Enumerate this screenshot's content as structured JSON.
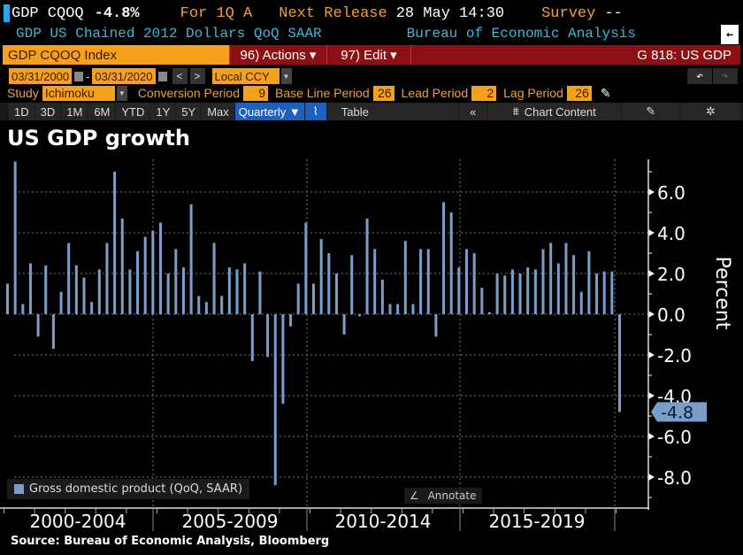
{
  "header": {
    "ticker": "GDP CQOQ",
    "last_value": "-4.8%",
    "period": "For 1Q A",
    "next_release_label": "Next Release",
    "next_release": "28 May 14:30",
    "survey_label": "Survey",
    "survey": "--",
    "description": "GDP US Chained 2012 Dollars QoQ SAAR",
    "source": "Bureau of Economic Analysis"
  },
  "command_bar": {
    "security": "GDP CQOQ Index",
    "actions": "96) Actions ▾",
    "edit": "97) Edit ▾",
    "function": "G 818: US GDP"
  },
  "date_bar": {
    "start": "03/31/2000",
    "end": "03/31/2020",
    "separator": "-",
    "prev": "<",
    "next": ">",
    "currency": "Local CCY"
  },
  "study_bar": {
    "study_label": "Study",
    "study": "Ichimoku",
    "params": [
      {
        "label": "Conversion Period",
        "value": "9"
      },
      {
        "label": "Base Line Period",
        "value": "26"
      },
      {
        "label": "Lead Period",
        "value": "2"
      },
      {
        "label": "Lag Period",
        "value": "26"
      }
    ]
  },
  "toolbar": {
    "ranges": [
      "1D",
      "3D",
      "1M",
      "6M",
      "YTD",
      "1Y",
      "5Y",
      "Max"
    ],
    "frequency": "Quarterly ▼",
    "table": "Table",
    "collapse": "«",
    "chart_content": "Chart Content"
  },
  "legend": "Gross domestic product (QoQ, SAAR)",
  "annotate": "Annotate",
  "source_note": "Source: Bureau of Economic Analysis, Bloomberg",
  "colors": {
    "bar": "#7b9ec9",
    "accent": "#f7a11a",
    "red": "#8c0f14"
  },
  "chart_data": {
    "type": "bar",
    "title": "US GDP growth",
    "ylabel": "Percent",
    "xlabel": "",
    "ylim": [
      -9.0,
      7.8
    ],
    "yticks": [
      6.0,
      4.0,
      2.0,
      0.0,
      -2.0,
      -4.0,
      -6.0,
      -8.0
    ],
    "ytick_labels": [
      "6.0",
      "4.0",
      "2.0",
      "0.0",
      "-2.0",
      "-4.0",
      "-6.0",
      "-8.0"
    ],
    "x_groups": [
      "2000-2004",
      "2005-2009",
      "2010-2014",
      "2015-2019"
    ],
    "last_value_label": "-4.8",
    "grid": true,
    "legend_position": "bottom-left",
    "categories": [
      "2000Q1",
      "2000Q2",
      "2000Q3",
      "2000Q4",
      "2001Q1",
      "2001Q2",
      "2001Q3",
      "2001Q4",
      "2002Q1",
      "2002Q2",
      "2002Q3",
      "2002Q4",
      "2003Q1",
      "2003Q2",
      "2003Q3",
      "2003Q4",
      "2004Q1",
      "2004Q2",
      "2004Q3",
      "2004Q4",
      "2005Q1",
      "2005Q2",
      "2005Q3",
      "2005Q4",
      "2006Q1",
      "2006Q2",
      "2006Q3",
      "2006Q4",
      "2007Q1",
      "2007Q2",
      "2007Q3",
      "2007Q4",
      "2008Q1",
      "2008Q2",
      "2008Q3",
      "2008Q4",
      "2009Q1",
      "2009Q2",
      "2009Q3",
      "2009Q4",
      "2010Q1",
      "2010Q2",
      "2010Q3",
      "2010Q4",
      "2011Q1",
      "2011Q2",
      "2011Q3",
      "2011Q4",
      "2012Q1",
      "2012Q2",
      "2012Q3",
      "2012Q4",
      "2013Q1",
      "2013Q2",
      "2013Q3",
      "2013Q4",
      "2014Q1",
      "2014Q2",
      "2014Q3",
      "2014Q4",
      "2015Q1",
      "2015Q2",
      "2015Q3",
      "2015Q4",
      "2016Q1",
      "2016Q2",
      "2016Q3",
      "2016Q4",
      "2017Q1",
      "2017Q2",
      "2017Q3",
      "2017Q4",
      "2018Q1",
      "2018Q2",
      "2018Q3",
      "2018Q4",
      "2019Q1",
      "2019Q2",
      "2019Q3",
      "2019Q4",
      "2020Q1"
    ],
    "series": [
      {
        "name": "Gross domestic product (QoQ, SAAR)",
        "values": [
          1.5,
          7.5,
          0.5,
          2.5,
          -1.1,
          2.4,
          -1.7,
          1.1,
          3.5,
          2.4,
          1.8,
          0.6,
          2.2,
          3.5,
          7.0,
          4.7,
          2.2,
          3.1,
          3.8,
          4.1,
          4.5,
          2.0,
          3.2,
          2.3,
          5.4,
          0.9,
          0.6,
          3.5,
          0.9,
          2.3,
          2.2,
          2.5,
          -2.3,
          2.1,
          -2.1,
          -8.4,
          -4.4,
          -0.6,
          1.5,
          4.5,
          1.5,
          3.7,
          3.0,
          2.0,
          -1.0,
          2.9,
          -0.1,
          4.7,
          3.2,
          1.7,
          0.5,
          0.5,
          3.6,
          0.5,
          3.2,
          3.2,
          -1.1,
          5.5,
          5.0,
          2.3,
          3.2,
          3.0,
          1.3,
          0.1,
          2.0,
          1.9,
          2.2,
          2.0,
          2.3,
          2.2,
          3.2,
          3.5,
          2.5,
          3.5,
          2.9,
          1.1,
          3.1,
          2.0,
          2.1,
          2.1,
          -4.8
        ]
      }
    ]
  }
}
